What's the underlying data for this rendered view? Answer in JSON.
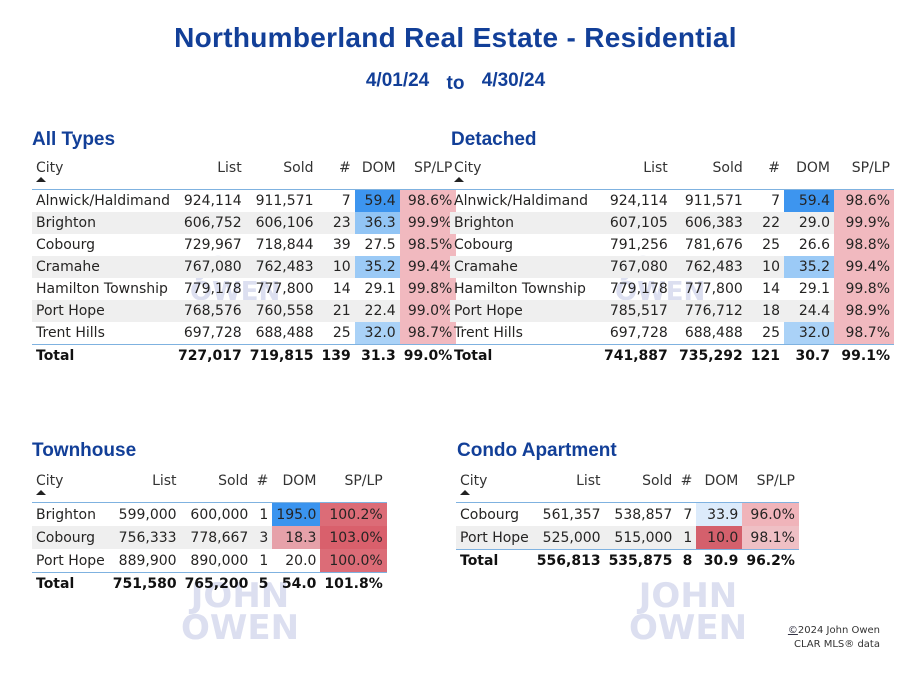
{
  "title": "Northumberland Real Estate - Residential",
  "dates": {
    "from": "4/01/24",
    "to_label": "to",
    "to": "4/30/24"
  },
  "columns": {
    "city": "City",
    "list": "List",
    "sold": "Sold",
    "count": "#",
    "dom": "DOM",
    "splp": "SP/LP"
  },
  "watermark": "JOHN OWEN",
  "colors": {
    "title": "#123f98",
    "alt_row": "#efefef",
    "header_rule": "#7fb2e0"
  },
  "tables": [
    {
      "id": "all-types",
      "title": "All Types",
      "rows": [
        {
          "city": "Alnwick/Haldimand",
          "list": "924,114",
          "sold": "911,571",
          "count": "7",
          "dom": "59.4",
          "splp": "98.6%",
          "dom_bg": "#3d95ef",
          "splp_bg": "#f1b9bf"
        },
        {
          "city": "Brighton",
          "list": "606,752",
          "sold": "606,106",
          "count": "23",
          "dom": "36.3",
          "splp": "99.9%",
          "dom_bg": "#92c5f5",
          "splp_bg": "#f1b9bf"
        },
        {
          "city": "Cobourg",
          "list": "729,967",
          "sold": "718,844",
          "count": "39",
          "dom": "27.5",
          "splp": "98.5%",
          "dom_bg": "",
          "splp_bg": "#f1b9bf"
        },
        {
          "city": "Cramahe",
          "list": "767,080",
          "sold": "762,483",
          "count": "10",
          "dom": "35.2",
          "splp": "99.4%",
          "dom_bg": "#9bcaf6",
          "splp_bg": "#f1b9bf"
        },
        {
          "city": "Hamilton Township",
          "list": "779,178",
          "sold": "777,800",
          "count": "14",
          "dom": "29.1",
          "splp": "99.8%",
          "dom_bg": "",
          "splp_bg": "#f1b9bf"
        },
        {
          "city": "Port Hope",
          "list": "768,576",
          "sold": "760,558",
          "count": "21",
          "dom": "22.4",
          "splp": "99.0%",
          "dom_bg": "",
          "splp_bg": "#f1b9bf"
        },
        {
          "city": "Trent Hills",
          "list": "697,728",
          "sold": "688,488",
          "count": "25",
          "dom": "32.0",
          "splp": "98.7%",
          "dom_bg": "#aad2f7",
          "splp_bg": "#f1b9bf"
        }
      ],
      "total": {
        "city": "Total",
        "list": "727,017",
        "sold": "719,815",
        "count": "139",
        "dom": "31.3",
        "splp": "99.0%"
      }
    },
    {
      "id": "detached",
      "title": "Detached",
      "rows": [
        {
          "city": "Alnwick/Haldimand",
          "list": "924,114",
          "sold": "911,571",
          "count": "7",
          "dom": "59.4",
          "splp": "98.6%",
          "dom_bg": "#3d95ef",
          "splp_bg": "#f1b9bf"
        },
        {
          "city": "Brighton",
          "list": "607,105",
          "sold": "606,383",
          "count": "22",
          "dom": "29.0",
          "splp": "99.9%",
          "dom_bg": "",
          "splp_bg": "#f1b9bf"
        },
        {
          "city": "Cobourg",
          "list": "791,256",
          "sold": "781,676",
          "count": "25",
          "dom": "26.6",
          "splp": "98.8%",
          "dom_bg": "",
          "splp_bg": "#f1b9bf"
        },
        {
          "city": "Cramahe",
          "list": "767,080",
          "sold": "762,483",
          "count": "10",
          "dom": "35.2",
          "splp": "99.4%",
          "dom_bg": "#9bcaf6",
          "splp_bg": "#f1b9bf"
        },
        {
          "city": "Hamilton Township",
          "list": "779,178",
          "sold": "777,800",
          "count": "14",
          "dom": "29.1",
          "splp": "99.8%",
          "dom_bg": "",
          "splp_bg": "#f1b9bf"
        },
        {
          "city": "Port Hope",
          "list": "785,517",
          "sold": "776,712",
          "count": "18",
          "dom": "24.4",
          "splp": "98.9%",
          "dom_bg": "",
          "splp_bg": "#f1b9bf"
        },
        {
          "city": "Trent Hills",
          "list": "697,728",
          "sold": "688,488",
          "count": "25",
          "dom": "32.0",
          "splp": "98.7%",
          "dom_bg": "#aad2f7",
          "splp_bg": "#f1b9bf"
        }
      ],
      "total": {
        "city": "Total",
        "list": "741,887",
        "sold": "735,292",
        "count": "121",
        "dom": "30.7",
        "splp": "99.1%"
      }
    },
    {
      "id": "townhouse",
      "title": "Townhouse",
      "rows": [
        {
          "city": "Brighton",
          "list": "599,000",
          "sold": "600,000",
          "count": "1",
          "dom": "195.0",
          "splp": "100.2%",
          "dom_bg": "#3a94ef",
          "splp_bg": "#dc6c77"
        },
        {
          "city": "Cobourg",
          "list": "756,333",
          "sold": "778,667",
          "count": "3",
          "dom": "18.3",
          "splp": "103.0%",
          "dom_bg": "#e6a1a9",
          "splp_bg": "#d9606c"
        },
        {
          "city": "Port Hope",
          "list": "889,900",
          "sold": "890,000",
          "count": "1",
          "dom": "20.0",
          "splp": "100.0%",
          "dom_bg": "",
          "splp_bg": "#dc6c77"
        }
      ],
      "total": {
        "city": "Total",
        "list": "751,580",
        "sold": "765,200",
        "count": "5",
        "dom": "54.0",
        "splp": "101.8%"
      }
    },
    {
      "id": "condo-apartment",
      "title": "Condo Apartment",
      "rows": [
        {
          "city": "Cobourg",
          "list": "561,357",
          "sold": "538,857",
          "count": "7",
          "dom": "33.9",
          "splp": "96.0%",
          "dom_bg": "#dcebfb",
          "splp_bg": "#f0b4ba"
        },
        {
          "city": "Port Hope",
          "list": "525,000",
          "sold": "515,000",
          "count": "1",
          "dom": "10.0",
          "splp": "98.1%",
          "dom_bg": "#d4606c",
          "splp_bg": "#efc0c5"
        }
      ],
      "total": {
        "city": "Total",
        "list": "556,813",
        "sold": "535,875",
        "count": "8",
        "dom": "30.9",
        "splp": "96.2%"
      }
    }
  ],
  "footer": {
    "copyright_symbol": "©",
    "copyright": "2024 John Owen",
    "source": "CLAR MLS® data"
  }
}
